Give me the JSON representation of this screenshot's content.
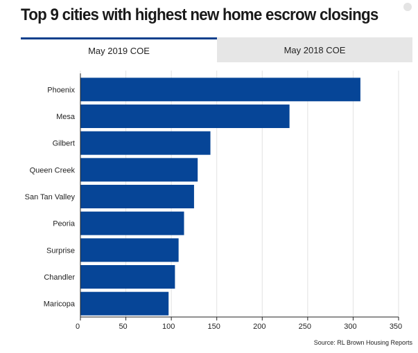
{
  "header": {
    "title": "Top 9 cities with highest new home escrow closings"
  },
  "tabs": [
    {
      "label": "May 2019 COE",
      "active": true
    },
    {
      "label": "May 2018 COE",
      "active": false
    }
  ],
  "source": "Source: RL Brown Housing Reports",
  "colors": {
    "bar": "#064597",
    "tab_accent": "#0b3f8c"
  },
  "chart_data": {
    "type": "bar",
    "orientation": "horizontal",
    "title": "Top 9 cities with highest new home escrow closings",
    "categories": [
      "Phoenix",
      "Mesa",
      "Gilbert",
      "Queen Creek",
      "San Tan Valley",
      "Peoria",
      "Surprise",
      "Chandler",
      "Maricopa"
    ],
    "values": [
      308,
      230,
      143,
      129,
      125,
      114,
      108,
      104,
      97
    ],
    "xlim": [
      0,
      350
    ],
    "xticks": [
      "0",
      "50",
      "100",
      "150",
      "200",
      "250",
      "300",
      "350"
    ],
    "xlabel": "",
    "ylabel": "",
    "grid": true
  }
}
